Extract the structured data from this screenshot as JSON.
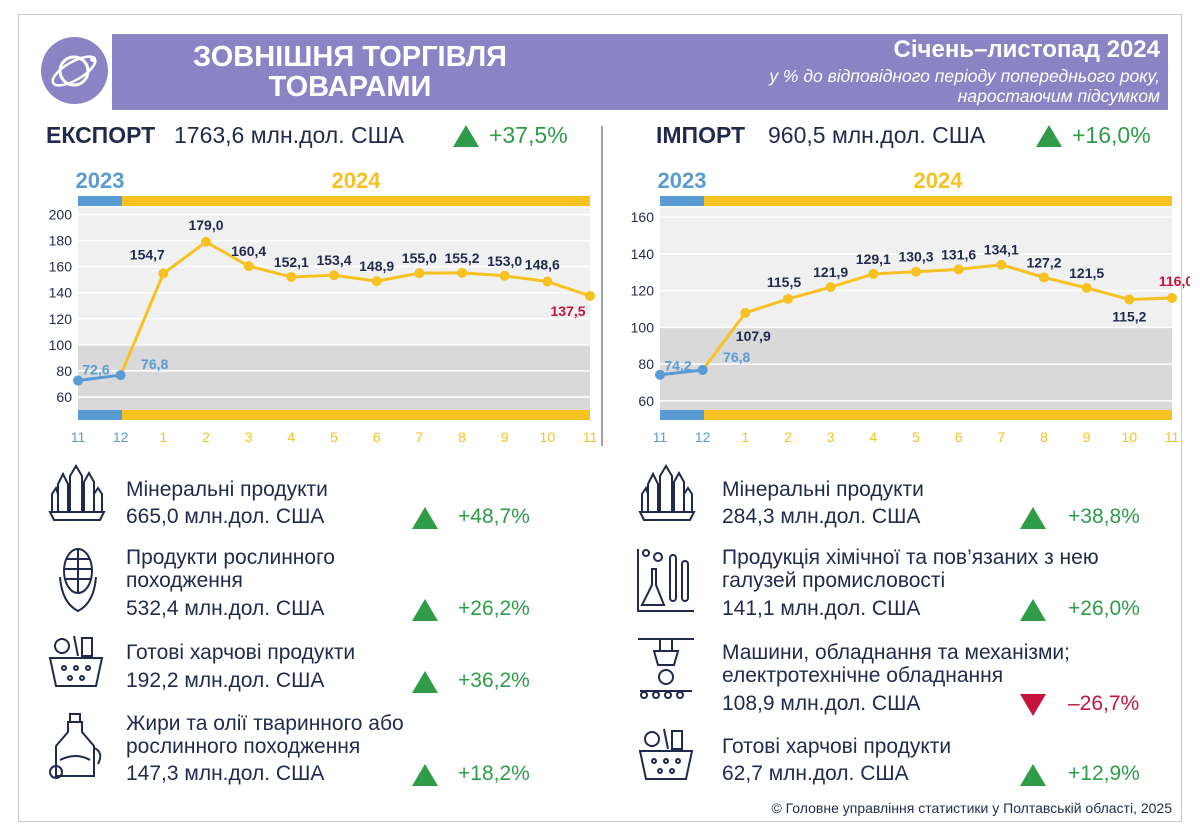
{
  "header": {
    "title_line1": "ЗОВНІШНЯ ТОРГІВЛЯ",
    "title_line2": "ТОВАРАМИ",
    "period": "Січень–листопад 2024",
    "subtitle_line1": "у % до відповідного періоду попереднього року,",
    "subtitle_line2": "наростаючим підсумком"
  },
  "export": {
    "label": "ЕКСПОРТ",
    "value": "1763,6 млн.дол. США",
    "change": "+37,5%",
    "direction": "up"
  },
  "import": {
    "label": "ІМПОРТ",
    "value": "960,5 млн.дол. США",
    "change": "+16,0%",
    "direction": "up"
  },
  "chart_data": [
    {
      "type": "line",
      "year_labels": [
        "2023",
        "2024"
      ],
      "categories": [
        "11",
        "12",
        "1",
        "2",
        "3",
        "4",
        "5",
        "6",
        "7",
        "8",
        "9",
        "10",
        "11"
      ],
      "value_labels": [
        "72,6",
        "76,8",
        "154,7",
        "179,0",
        "160,4",
        "152,1",
        "153,4",
        "148,9",
        "155,0",
        "155,2",
        "153,0",
        "148,6",
        "137,5"
      ],
      "series": [
        {
          "values": [
            72.6,
            76.8,
            154.7,
            179.0,
            160.4,
            152.1,
            153.4,
            148.9,
            155.0,
            155.2,
            153.0,
            148.6,
            137.5
          ]
        }
      ],
      "yticks": [
        60,
        80,
        100,
        120,
        140,
        160,
        180,
        200
      ],
      "ylim": [
        50,
        205
      ],
      "shade_below": 100,
      "colors": {
        "y2023": "#5b9bd5",
        "y2024": "#f6c222",
        "last": "#c4143c",
        "label": "#1f2a4d"
      }
    },
    {
      "type": "line",
      "year_labels": [
        "2023",
        "2024"
      ],
      "categories": [
        "11",
        "12",
        "1",
        "2",
        "3",
        "4",
        "5",
        "6",
        "7",
        "8",
        "9",
        "10",
        "11"
      ],
      "value_labels": [
        "74,2",
        "76,8",
        "107,9",
        "115,5",
        "121,9",
        "129,1",
        "130,3",
        "131,6",
        "134,1",
        "127,2",
        "121,5",
        "115,2",
        "116,0"
      ],
      "series": [
        {
          "values": [
            74.2,
            76.8,
            107.9,
            115.5,
            121.9,
            129.1,
            130.3,
            131.6,
            134.1,
            127.2,
            121.5,
            115.2,
            116.0
          ]
        }
      ],
      "yticks": [
        60,
        80,
        100,
        120,
        140,
        160
      ],
      "ylim": [
        55,
        165
      ],
      "shade_below": 100,
      "colors": {
        "y2023": "#5b9bd5",
        "y2024": "#f6c222",
        "last": "#c4143c",
        "label": "#1f2a4d"
      }
    }
  ],
  "export_products": [
    {
      "name": "Мінеральні продукти",
      "value": "665,0 млн.дол. США",
      "change": "+48,7%",
      "direction": "up",
      "icon": "crystals-icon"
    },
    {
      "name": "Продукти рослинного походження",
      "value": "532,4 млн.дол. США",
      "change": "+26,2%",
      "direction": "up",
      "icon": "corn-icon"
    },
    {
      "name": "Готові харчові продукти",
      "value": "192,2 млн.дол. США",
      "change": "+36,2%",
      "direction": "up",
      "icon": "food-basket-icon"
    },
    {
      "name": "Жири та олії тваринного або рослинного походження",
      "value": "147,3 млн.дол. США",
      "change": "+18,2%",
      "direction": "up",
      "icon": "oil-bottle-icon"
    }
  ],
  "import_products": [
    {
      "name": "Мінеральні продукти",
      "value": "284,3 млн.дол. США",
      "change": "+38,8%",
      "direction": "up",
      "icon": "crystals-icon"
    },
    {
      "name": "Продукція хімічної та пов’язаних з нею галузей промисловості",
      "value": "141,1 млн.дол. США",
      "change": "+26,0%",
      "direction": "up",
      "icon": "chemistry-icon"
    },
    {
      "name": "Машини, обладнання та механізми; електротехнічне обладнання",
      "value": "108,9 млн.дол. США",
      "change": "–26,7%",
      "direction": "down",
      "icon": "machinery-icon"
    },
    {
      "name": "Готові харчові продукти",
      "value": "62,7 млн.дол. США",
      "change": "+12,9%",
      "direction": "up",
      "icon": "food-basket-icon"
    }
  ],
  "footer": "© Головне управління статистики у Полтавській області, 2025"
}
